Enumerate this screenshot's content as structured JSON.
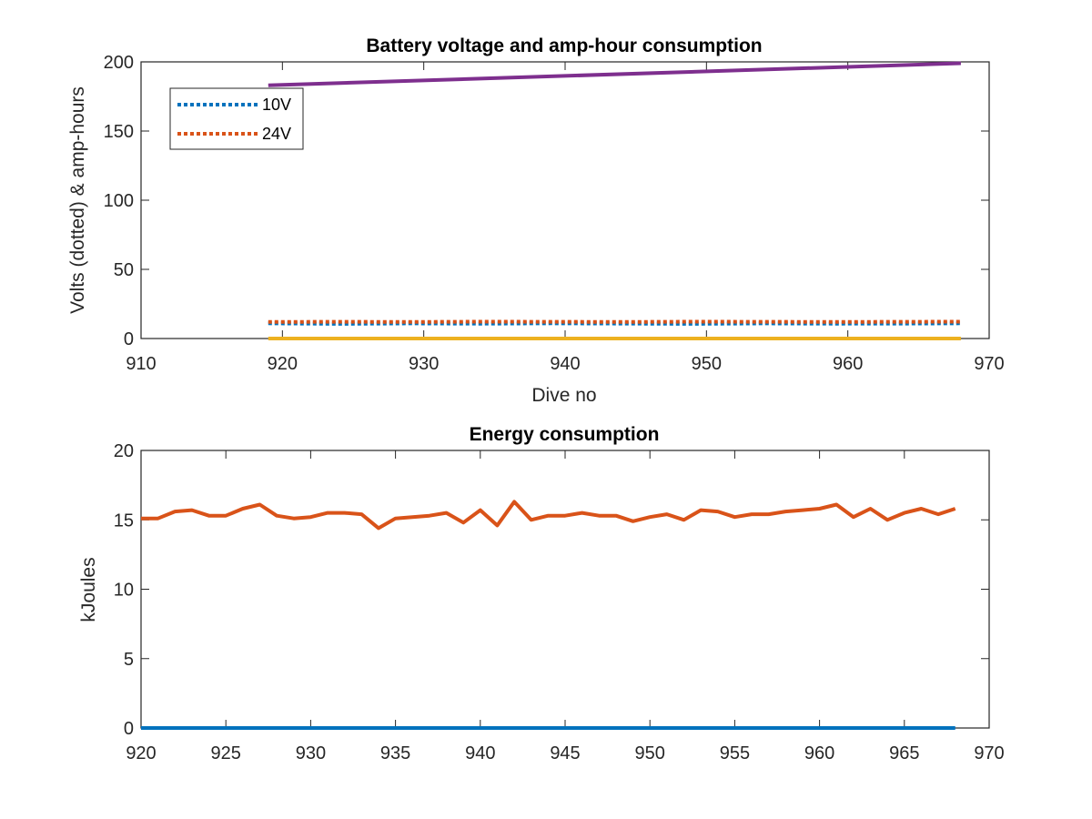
{
  "chart_data": [
    {
      "type": "line",
      "title": "Battery voltage and amp-hour consumption",
      "xlabel": "Dive no",
      "ylabel": "Volts (dotted) & amp-hours",
      "xlim": [
        910,
        970
      ],
      "ylim": [
        0,
        200
      ],
      "xticks": [
        910,
        920,
        930,
        940,
        950,
        960,
        970
      ],
      "yticks": [
        0,
        50,
        100,
        150,
        200
      ],
      "grid": false,
      "legend": {
        "placement": "top-left",
        "entries": [
          "10V",
          "24V"
        ]
      },
      "series": [
        {
          "name": "10V",
          "style": "dotted",
          "color": "#0072BD",
          "x": [
            919,
            924,
            929,
            934,
            939,
            944,
            949,
            954,
            959,
            964,
            968
          ],
          "y": [
            11.0,
            10.6,
            10.9,
            10.7,
            11.0,
            10.8,
            10.6,
            10.9,
            10.7,
            10.8,
            11.0
          ]
        },
        {
          "name": "24V",
          "style": "dotted",
          "color": "#D95319",
          "x": [
            919,
            924,
            929,
            934,
            939,
            944,
            949,
            954,
            959,
            964,
            968
          ],
          "y": [
            12.0,
            12.1,
            12.0,
            12.2,
            12.1,
            12.0,
            12.2,
            12.1,
            12.0,
            12.1,
            12.2
          ]
        },
        {
          "style": "solid",
          "color": "#EDB120",
          "x": [
            919,
            968
          ],
          "y": [
            0,
            0
          ]
        },
        {
          "style": "solid",
          "color": "#7E2F8E",
          "x": [
            919,
            968
          ],
          "y": [
            183,
            199
          ]
        }
      ]
    },
    {
      "type": "line",
      "title": "Energy consumption",
      "xlabel": "",
      "ylabel": "kJoules",
      "xlim": [
        920,
        970
      ],
      "ylim": [
        0,
        20
      ],
      "xticks": [
        920,
        925,
        930,
        935,
        940,
        945,
        950,
        955,
        960,
        965,
        970
      ],
      "yticks": [
        0,
        5,
        10,
        15,
        20
      ],
      "grid": false,
      "series": [
        {
          "style": "solid",
          "color": "#0072BD",
          "x": [
            920,
            968
          ],
          "y": [
            0,
            0
          ]
        },
        {
          "style": "solid",
          "color": "#D95319",
          "x": [
            920,
            921,
            922,
            923,
            924,
            925,
            926,
            927,
            928,
            929,
            930,
            931,
            932,
            933,
            934,
            935,
            936,
            937,
            938,
            939,
            940,
            941,
            942,
            943,
            944,
            945,
            946,
            947,
            948,
            949,
            950,
            951,
            952,
            953,
            954,
            955,
            956,
            957,
            958,
            959,
            960,
            961,
            962,
            963,
            964,
            965,
            966,
            967,
            968
          ],
          "y": [
            15.1,
            15.1,
            15.6,
            15.7,
            15.3,
            15.3,
            15.8,
            16.1,
            15.3,
            15.1,
            15.2,
            15.5,
            15.5,
            15.4,
            14.4,
            15.1,
            15.2,
            15.3,
            15.5,
            14.8,
            15.7,
            14.6,
            16.3,
            15.0,
            15.3,
            15.3,
            15.5,
            15.3,
            15.3,
            14.9,
            15.2,
            15.4,
            15.0,
            15.7,
            15.6,
            15.2,
            15.4,
            15.4,
            15.6,
            15.7,
            15.8,
            16.1,
            15.2,
            15.8,
            15.0,
            15.5,
            15.8,
            15.4,
            15.8
          ]
        }
      ]
    }
  ]
}
